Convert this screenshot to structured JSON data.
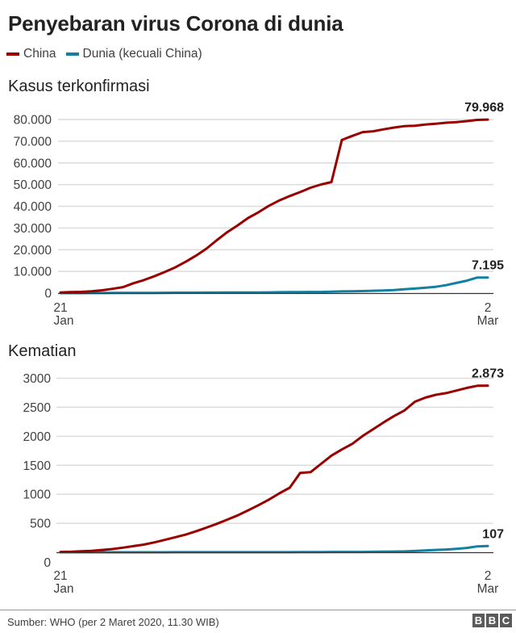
{
  "header": {
    "title": "Penyebaran virus Corona di dunia"
  },
  "legend": [
    {
      "label": "China",
      "color": "#990000"
    },
    {
      "label": "Dunia (kecuali China)",
      "color": "#1380a1"
    }
  ],
  "footer": {
    "source": "Sumber: WHO (per 2 Maret 2020, 11.30 WIB)",
    "logo_letters": [
      "B",
      "B",
      "C"
    ]
  },
  "chart_data": [
    {
      "type": "line",
      "title": "Kasus terkonfirmasi",
      "xlabel": "",
      "ylabel": "",
      "x_start_label": [
        "21",
        "Jan"
      ],
      "x_end_label": [
        "2",
        "Mar"
      ],
      "x": [
        "21 Jan",
        "22 Jan",
        "23 Jan",
        "24 Jan",
        "25 Jan",
        "26 Jan",
        "27 Jan",
        "28 Jan",
        "29 Jan",
        "30 Jan",
        "31 Jan",
        "1 Feb",
        "2 Feb",
        "3 Feb",
        "4 Feb",
        "5 Feb",
        "6 Feb",
        "7 Feb",
        "8 Feb",
        "9 Feb",
        "10 Feb",
        "11 Feb",
        "12 Feb",
        "13 Feb",
        "14 Feb",
        "15 Feb",
        "16 Feb",
        "17 Feb",
        "18 Feb",
        "19 Feb",
        "20 Feb",
        "21 Feb",
        "22 Feb",
        "23 Feb",
        "24 Feb",
        "25 Feb",
        "26 Feb",
        "27 Feb",
        "28 Feb",
        "29 Feb",
        "1 Mar",
        "2 Mar"
      ],
      "yticks": [
        0,
        10000,
        20000,
        30000,
        40000,
        50000,
        60000,
        70000,
        80000
      ],
      "ytick_labels": [
        "0",
        "10.000",
        "20.000",
        "30.000",
        "40.000",
        "50.000",
        "60.000",
        "70.000",
        "80.000"
      ],
      "ylim": [
        0,
        80000
      ],
      "grid": true,
      "legend_position": "top",
      "series": [
        {
          "name": "China",
          "color": "#990000",
          "end_label": "79.968",
          "values": [
            278,
            440,
            571,
            830,
            1297,
            1985,
            2741,
            4537,
            5997,
            7736,
            9720,
            11821,
            14411,
            17238,
            20471,
            24363,
            28060,
            31211,
            34598,
            37251,
            40235,
            42708,
            44730,
            46550,
            48548,
            50054,
            51174,
            70548,
            72436,
            74185,
            74576,
            75465,
            76288,
            76936,
            77150,
            77658,
            78064,
            78497,
            78824,
            79251,
            79824,
            79968
          ]
        },
        {
          "name": "Dunia (kecuali China)",
          "color": "#1380a1",
          "end_label": "7.195",
          "values": [
            4,
            7,
            11,
            23,
            40,
            57,
            64,
            87,
            105,
            118,
            153,
            173,
            183,
            188,
            212,
            227,
            265,
            270,
            288,
            307,
            319,
            395,
            441,
            447,
            505,
            526,
            683,
            794,
            804,
            924,
            1073,
            1200,
            1402,
            1769,
            2069,
            2459,
            2918,
            3664,
            4691,
            5737,
            7169,
            7195
          ]
        }
      ]
    },
    {
      "type": "line",
      "title": "Kematian",
      "xlabel": "",
      "ylabel": "",
      "x_start_label": [
        "21",
        "Jan"
      ],
      "x_end_label": [
        "2",
        "Mar"
      ],
      "x": [
        "21 Jan",
        "22 Jan",
        "23 Jan",
        "24 Jan",
        "25 Jan",
        "26 Jan",
        "27 Jan",
        "28 Jan",
        "29 Jan",
        "30 Jan",
        "31 Jan",
        "1 Feb",
        "2 Feb",
        "3 Feb",
        "4 Feb",
        "5 Feb",
        "6 Feb",
        "7 Feb",
        "8 Feb",
        "9 Feb",
        "10 Feb",
        "11 Feb",
        "12 Feb",
        "13 Feb",
        "14 Feb",
        "15 Feb",
        "16 Feb",
        "17 Feb",
        "18 Feb",
        "19 Feb",
        "20 Feb",
        "21 Feb",
        "22 Feb",
        "23 Feb",
        "24 Feb",
        "25 Feb",
        "26 Feb",
        "27 Feb",
        "28 Feb",
        "29 Feb",
        "1 Mar",
        "2 Mar"
      ],
      "yticks": [
        0,
        500,
        1000,
        1500,
        2000,
        2500,
        3000
      ],
      "ytick_labels": [
        "0",
        "500",
        "1000",
        "1500",
        "2000",
        "2500",
        "3000"
      ],
      "ylim": [
        0,
        3000
      ],
      "grid": true,
      "legend_position": "top",
      "series": [
        {
          "name": "China",
          "color": "#990000",
          "end_label": "2.873",
          "values": [
            6,
            9,
            17,
            25,
            41,
            56,
            80,
            106,
            132,
            170,
            213,
            259,
            304,
            361,
            425,
            490,
            563,
            636,
            722,
            811,
            908,
            1016,
            1113,
            1368,
            1381,
            1524,
            1666,
            1772,
            1870,
            2006,
            2121,
            2239,
            2348,
            2445,
            2595,
            2666,
            2715,
            2744,
            2788,
            2835,
            2870,
            2873
          ]
        },
        {
          "name": "Dunia (kecuali China)",
          "color": "#1380a1",
          "end_label": "107",
          "values": [
            0,
            0,
            0,
            0,
            0,
            0,
            0,
            0,
            0,
            0,
            0,
            1,
            1,
            1,
            1,
            1,
            1,
            2,
            2,
            2,
            2,
            2,
            2,
            3,
            3,
            4,
            5,
            5,
            5,
            6,
            8,
            10,
            12,
            16,
            22,
            32,
            40,
            48,
            60,
            75,
            101,
            107
          ]
        }
      ]
    }
  ]
}
